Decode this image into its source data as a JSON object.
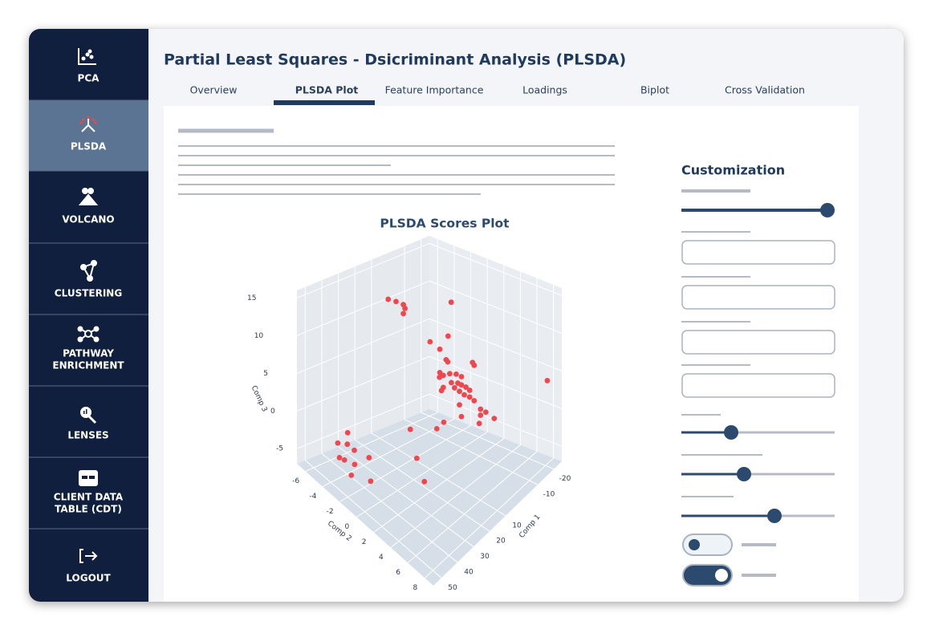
{
  "sidebar": [
    {
      "label": [
        "PCA"
      ]
    },
    {
      "label": [
        "PLSDA"
      ]
    },
    {
      "label": [
        "VOLCANO"
      ]
    },
    {
      "label": [
        "CLUSTERING"
      ]
    },
    {
      "label": [
        "PATHWAY",
        "ENRICHMENT"
      ]
    },
    {
      "label": [
        "LENSES"
      ]
    },
    {
      "label": [
        "CLIENT DATA",
        "TABLE (CDT)"
      ]
    },
    {
      "label": [
        "LOGOUT"
      ]
    }
  ],
  "header": {
    "title": "Partial Least Squares - Dsicriminant Analysis (PLSDA)"
  },
  "tabs": [
    "Overview",
    "PLSDA Plot",
    "Feature Importance",
    "Loadings",
    "Biplot",
    "Cross Validation"
  ],
  "customization": {
    "title": "Customization"
  },
  "chart_data": {
    "type": "scatter3d",
    "title": "PLSDA Scores Plot",
    "x_label": "Comp 1",
    "y_label": "Comp 2",
    "z_label": "Comp 3",
    "color": "#f0474f",
    "xlim": [
      -25,
      55
    ],
    "xticks": [
      -20,
      -10,
      10,
      20,
      30,
      40,
      50
    ],
    "ylim": [
      -7,
      9
    ],
    "yticks": [
      -6,
      -4,
      -2,
      0,
      2,
      4,
      6,
      8
    ],
    "zlim": [
      -7,
      16
    ],
    "zticks": [
      -5,
      0,
      5,
      10,
      15
    ],
    "x": [
      3.4,
      1.2,
      -1.2,
      -1.7,
      -1.2,
      -15.6,
      -1.2,
      -4.1,
      -6.6,
      -5.9,
      -6.4,
      -13.9,
      -14.4,
      -4.1,
      -5.2,
      -3.9,
      -7.1,
      -9.0,
      -10.7,
      -7.6,
      -9.5,
      -10.7,
      -11.9,
      -8.5,
      -10.0,
      -13.2,
      -5.2,
      -4.6,
      -11.4,
      -13.2,
      -14.4,
      -10.0,
      -16.3,
      -18.0,
      -16.3,
      -20.6,
      -10.7,
      -16.0,
      -20.6,
      21.1,
      13.1,
      10.9,
      19.2,
      24.9,
      50.9,
      48.0,
      48.2,
      46.0,
      50.4,
      48.9,
      41.7,
      45.8,
      46.8,
      41.2
    ],
    "y": [
      -6.3,
      -5.8,
      -5.4,
      -5.3,
      -5.4,
      -2.5,
      -2.2,
      -1.6,
      -1.1,
      -1.2,
      -1.1,
      0.4,
      0.5,
      -1.6,
      -1.4,
      -1.6,
      -1.0,
      -0.6,
      -0.3,
      -0.9,
      -0.5,
      -0.3,
      0.0,
      -0.7,
      -0.4,
      0.2,
      -1.4,
      -1.5,
      -0.1,
      0.2,
      0.5,
      -0.4,
      0.9,
      1.2,
      0.9,
      1.7,
      -0.3,
      0.8,
      8.1,
      -0.2,
      1.4,
      1.8,
      0.2,
      2.2,
      -3.0,
      -2.4,
      -2.4,
      -2.0,
      -2.9,
      -2.6,
      -1.1,
      -2.0,
      -2.2,
      -1.0
    ],
    "z": [
      10.6,
      10.4,
      10.0,
      9.5,
      8.8,
      10.3,
      7.0,
      6.0,
      7.7,
      4.6,
      4.3,
      4.0,
      3.6,
      2.9,
      2.5,
      2.3,
      2.7,
      2.6,
      2.2,
      1.5,
      1.4,
      1.1,
      0.8,
      0.8,
      0.3,
      0.3,
      0.9,
      0.5,
      -0.2,
      -0.6,
      -1.1,
      -1.5,
      -2.3,
      -2.8,
      -3.1,
      -3.8,
      -3.1,
      -4.2,
      4.2,
      -0.3,
      -0.2,
      0.6,
      -4.1,
      -4.8,
      -0.7,
      0.9,
      -0.6,
      -1.3,
      -2.6,
      -2.8,
      -2.0,
      -3.2,
      -4.7,
      -5.1
    ]
  }
}
